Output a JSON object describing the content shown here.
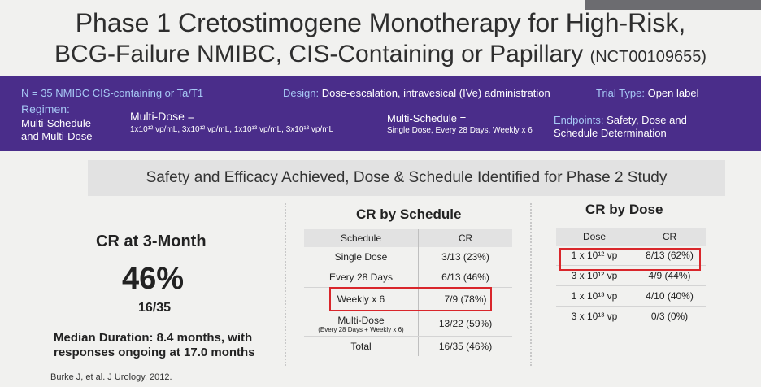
{
  "title": {
    "line1": "Phase 1 Cretostimogene Monotherapy for High-Risk,",
    "line2": "BCG-Failure NMIBC, CIS-Containing or Papillary",
    "nct": "(NCT00109655)"
  },
  "band": {
    "n_text": "N = 35 NMIBC CIS-containing or Ta/T1",
    "design_label": "Design:",
    "design_text": "Dose-escalation, intravesical (IVe) administration",
    "trial_label": "Trial Type:",
    "trial_text": "Open label",
    "regimen_label": "Regimen:",
    "regimen_line1": "Multi-Schedule",
    "regimen_line2": "and Multi-Dose",
    "multidose_label": "Multi-Dose =",
    "multidose_text": "1x10¹² vp/mL, 3x10¹² vp/mL, 1x10¹³ vp/mL, 3x10¹³ vp/mL",
    "multischedule_label": "Multi-Schedule =",
    "multischedule_text": "Single Dose, Every 28 Days, Weekly x 6",
    "endpoints_label": "Endpoints:",
    "endpoints_line1": "Safety, Dose and",
    "endpoints_line2": "Schedule Determination"
  },
  "banner": "Safety and Efficacy Achieved, Dose & Schedule Identified for Phase 2 Study",
  "left": {
    "cr_title": "CR at 3-Month",
    "percent": "46%",
    "fraction": "16/35",
    "median_line1": "Median Duration: 8.4 months, with",
    "median_line2": "responses ongoing at 17.0 months",
    "citation": "Burke J, et al. J Urology, 2012."
  },
  "schedule": {
    "title": "CR by Schedule",
    "headers": [
      "Schedule",
      "CR"
    ],
    "rows": [
      {
        "label": "Single Dose",
        "sub": "",
        "value": "3/13 (23%)"
      },
      {
        "label": "Every 28 Days",
        "sub": "",
        "value": "6/13 (46%)"
      },
      {
        "label": "Weekly x 6",
        "sub": "",
        "value": "7/9 (78%)"
      },
      {
        "label": "Multi-Dose",
        "sub": "(Every 28 Days + Weekly x 6)",
        "value": "13/22 (59%)"
      },
      {
        "label": "Total",
        "sub": "",
        "value": "16/35 (46%)"
      }
    ]
  },
  "dose": {
    "title": "CR by Dose",
    "headers": [
      "Dose",
      "CR"
    ],
    "rows": [
      {
        "label": "1 x 10¹² vp",
        "value": "8/13 (62%)"
      },
      {
        "label": "3 x 10¹² vp",
        "value": "4/9 (44%)"
      },
      {
        "label": "1 x 10¹³ vp",
        "value": "4/10 (40%)"
      },
      {
        "label": "3 x 10¹³ vp",
        "value": "0/3 (0%)"
      }
    ]
  },
  "colors": {
    "band": "#4a2d8a",
    "label": "#a7c9f5",
    "highlight": "#d9262b"
  }
}
